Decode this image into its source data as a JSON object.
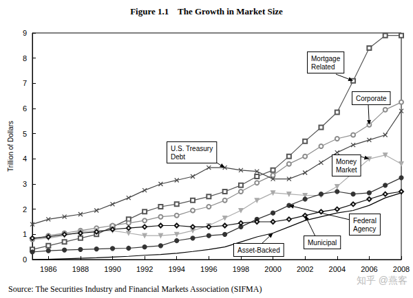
{
  "chart_data": {
    "type": "line",
    "title": "Figure 1.1    The Growth in Market Size",
    "y_label": "Trillion of Dollars",
    "source": "Source: The Securities Industry and Financial Markets Association (SIFMA)",
    "watermark": "知乎 @燕客",
    "grid": false,
    "x": [
      1985,
      1986,
      1987,
      1988,
      1989,
      1990,
      1991,
      1992,
      1993,
      1994,
      1995,
      1996,
      1997,
      1998,
      1999,
      2000,
      2001,
      2002,
      2003,
      2004,
      2005,
      2006,
      2007,
      2008
    ],
    "xlim": [
      1985,
      2008
    ],
    "xticks": [
      1986,
      1988,
      1990,
      1992,
      1994,
      1996,
      1998,
      2000,
      2002,
      2004,
      2006,
      2008
    ],
    "ylim": [
      0,
      9
    ],
    "yticks": [
      0,
      1,
      2,
      3,
      4,
      5,
      6,
      7,
      8,
      9
    ],
    "series": [
      {
        "name": "Mortgage Related",
        "color": "#555555",
        "marker": "square-open",
        "values": [
          0.4,
          0.55,
          0.7,
          0.85,
          1.0,
          1.3,
          1.6,
          1.9,
          2.1,
          2.2,
          2.35,
          2.5,
          2.7,
          2.95,
          3.3,
          3.55,
          4.1,
          4.7,
          5.25,
          5.85,
          7.1,
          8.4,
          8.9,
          8.9
        ]
      },
      {
        "name": "Corporate",
        "color": "#8c8c8c",
        "marker": "circle-open",
        "values": [
          0.8,
          0.95,
          1.05,
          1.15,
          1.25,
          1.35,
          1.45,
          1.55,
          1.7,
          1.75,
          1.95,
          2.1,
          2.35,
          2.7,
          3.05,
          3.35,
          3.8,
          4.1,
          4.5,
          4.8,
          4.95,
          5.35,
          5.95,
          6.25
        ]
      },
      {
        "name": "U.S. Treasury Debt",
        "color": "#444444",
        "marker": "x",
        "values": [
          1.4,
          1.6,
          1.7,
          1.8,
          1.95,
          2.2,
          2.45,
          2.75,
          3.0,
          3.15,
          3.3,
          3.65,
          3.65,
          3.55,
          3.5,
          3.2,
          3.2,
          3.45,
          3.85,
          4.25,
          4.55,
          4.75,
          4.95,
          5.9
        ]
      },
      {
        "name": "Money Market",
        "color": "#aaaaaa",
        "marker": "triangle-down",
        "values": [
          0.8,
          0.85,
          0.95,
          1.1,
          1.15,
          1.15,
          1.05,
          0.95,
          0.95,
          1.0,
          1.15,
          1.35,
          1.65,
          1.95,
          2.35,
          2.65,
          2.6,
          2.55,
          2.55,
          2.9,
          3.45,
          4.0,
          4.15,
          3.8
        ]
      },
      {
        "name": "Federal Agency",
        "color": "#333333",
        "marker": "circle",
        "values": [
          0.3,
          0.35,
          0.38,
          0.4,
          0.42,
          0.44,
          0.45,
          0.5,
          0.55,
          0.75,
          0.85,
          0.95,
          1.0,
          1.3,
          1.6,
          1.85,
          2.15,
          2.4,
          2.6,
          2.7,
          2.6,
          2.65,
          2.95,
          3.25
        ]
      },
      {
        "name": "Municipal",
        "color": "#111111",
        "marker": "diamond-open",
        "values": [
          0.85,
          0.9,
          1.0,
          1.05,
          1.1,
          1.2,
          1.25,
          1.3,
          1.35,
          1.35,
          1.3,
          1.3,
          1.35,
          1.45,
          1.5,
          1.5,
          1.6,
          1.75,
          1.9,
          2.0,
          2.2,
          2.4,
          2.6,
          2.7
        ]
      },
      {
        "name": "Asset-Backed",
        "color": "#000000",
        "marker": "none",
        "values": [
          0.0,
          0.01,
          0.03,
          0.05,
          0.07,
          0.1,
          0.13,
          0.17,
          0.2,
          0.25,
          0.32,
          0.4,
          0.5,
          0.7,
          0.9,
          1.05,
          1.3,
          1.55,
          1.7,
          1.85,
          1.95,
          2.15,
          2.45,
          2.65
        ]
      }
    ]
  }
}
